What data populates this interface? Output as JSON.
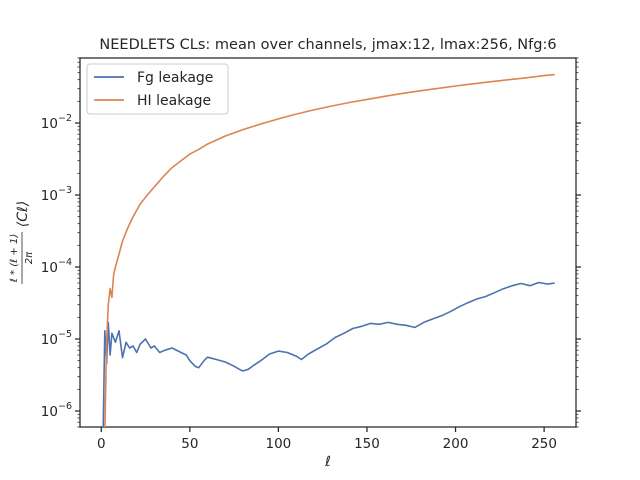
{
  "chart_data": {
    "type": "line",
    "title": "NEEDLETS CLs: mean over channels, jmax:12, lmax:256, Nfg:6",
    "xlabel": "ℓ",
    "ylabel": "ℓ*(ℓ+1)/2π ⟨Cℓ⟩",
    "ylabel_parts": {
      "numerator": "ℓ * (ℓ + 1)",
      "denominator": "2π",
      "term": "⟨Cℓ⟩"
    },
    "yscale": "log",
    "xlim": [
      -12,
      268
    ],
    "ylim": [
      6e-07,
      0.08
    ],
    "xticks": [
      0,
      50,
      100,
      150,
      200,
      250
    ],
    "xtick_labels": [
      "0",
      "50",
      "100",
      "150",
      "200",
      "250"
    ],
    "yticks": [
      1e-06,
      1e-05,
      0.0001,
      0.001,
      0.01
    ],
    "ytick_labels": [
      {
        "base": "10",
        "exp": "−6"
      },
      {
        "base": "10",
        "exp": "−5"
      },
      {
        "base": "10",
        "exp": "−4"
      },
      {
        "base": "10",
        "exp": "−3"
      },
      {
        "base": "10",
        "exp": "−2"
      }
    ],
    "grid": false,
    "legend_position": "top-left",
    "series": [
      {
        "name": "Fg leakage",
        "color": "#4c72b0",
        "points": [
          [
            1,
            4e-07
          ],
          [
            2,
            1.3e-05
          ],
          [
            3,
            4.5e-06
          ],
          [
            4,
            1.7e-05
          ],
          [
            5,
            6e-06
          ],
          [
            6,
            1.2e-05
          ],
          [
            8,
            9e-06
          ],
          [
            10,
            1.3e-05
          ],
          [
            12,
            5.5e-06
          ],
          [
            14,
            9e-06
          ],
          [
            16,
            7.5e-06
          ],
          [
            18,
            8e-06
          ],
          [
            20,
            6.5e-06
          ],
          [
            22,
            8.5e-06
          ],
          [
            25,
            1e-05
          ],
          [
            28,
            7.5e-06
          ],
          [
            30,
            8e-06
          ],
          [
            33,
            6.5e-06
          ],
          [
            36,
            7e-06
          ],
          [
            40,
            7.5e-06
          ],
          [
            45,
            6.5e-06
          ],
          [
            48,
            6e-06
          ],
          [
            50,
            5e-06
          ],
          [
            53,
            4.2e-06
          ],
          [
            55,
            4e-06
          ],
          [
            58,
            5e-06
          ],
          [
            60,
            5.6e-06
          ],
          [
            65,
            5.2e-06
          ],
          [
            70,
            4.8e-06
          ],
          [
            75,
            4.2e-06
          ],
          [
            78,
            3.8e-06
          ],
          [
            80,
            3.6e-06
          ],
          [
            83,
            3.8e-06
          ],
          [
            86,
            4.3e-06
          ],
          [
            90,
            5e-06
          ],
          [
            95,
            6.2e-06
          ],
          [
            100,
            6.8e-06
          ],
          [
            105,
            6.5e-06
          ],
          [
            110,
            5.8e-06
          ],
          [
            113,
            5.2e-06
          ],
          [
            117,
            6.2e-06
          ],
          [
            122,
            7.3e-06
          ],
          [
            127,
            8.5e-06
          ],
          [
            132,
            1.05e-05
          ],
          [
            137,
            1.2e-05
          ],
          [
            142,
            1.4e-05
          ],
          [
            147,
            1.5e-05
          ],
          [
            152,
            1.65e-05
          ],
          [
            157,
            1.6e-05
          ],
          [
            162,
            1.7e-05
          ],
          [
            167,
            1.6e-05
          ],
          [
            172,
            1.55e-05
          ],
          [
            177,
            1.45e-05
          ],
          [
            182,
            1.7e-05
          ],
          [
            187,
            1.9e-05
          ],
          [
            192,
            2.1e-05
          ],
          [
            197,
            2.4e-05
          ],
          [
            202,
            2.8e-05
          ],
          [
            207,
            3.2e-05
          ],
          [
            212,
            3.6e-05
          ],
          [
            217,
            3.9e-05
          ],
          [
            222,
            4.4e-05
          ],
          [
            227,
            5e-05
          ],
          [
            232,
            5.5e-05
          ],
          [
            237,
            5.9e-05
          ],
          [
            242,
            5.5e-05
          ],
          [
            247,
            6.1e-05
          ],
          [
            252,
            5.8e-05
          ],
          [
            256,
            6e-05
          ]
        ]
      },
      {
        "name": "HI leakage",
        "color": "#dd8452",
        "points": [
          [
            1,
            4e-07
          ],
          [
            2,
            5e-07
          ],
          [
            3,
            9e-06
          ],
          [
            4,
            3e-05
          ],
          [
            5,
            5e-05
          ],
          [
            6,
            3.8e-05
          ],
          [
            7,
            8e-05
          ],
          [
            8,
            0.0001
          ],
          [
            10,
            0.00015
          ],
          [
            12,
            0.00023
          ],
          [
            15,
            0.00035
          ],
          [
            18,
            0.0005
          ],
          [
            22,
            0.00075
          ],
          [
            26,
            0.001
          ],
          [
            30,
            0.0013
          ],
          [
            35,
            0.0018
          ],
          [
            40,
            0.0024
          ],
          [
            45,
            0.003
          ],
          [
            50,
            0.0037
          ],
          [
            55,
            0.0043
          ],
          [
            60,
            0.0051
          ],
          [
            65,
            0.0058
          ],
          [
            70,
            0.0066
          ],
          [
            75,
            0.0073
          ],
          [
            80,
            0.0081
          ],
          [
            90,
            0.0097
          ],
          [
            100,
            0.0114
          ],
          [
            110,
            0.0133
          ],
          [
            120,
            0.0152
          ],
          [
            130,
            0.0172
          ],
          [
            140,
            0.0193
          ],
          [
            150,
            0.0213
          ],
          [
            160,
            0.0235
          ],
          [
            170,
            0.0258
          ],
          [
            180,
            0.028
          ],
          [
            190,
            0.0303
          ],
          [
            200,
            0.0327
          ],
          [
            210,
            0.035
          ],
          [
            220,
            0.0375
          ],
          [
            230,
            0.04
          ],
          [
            240,
            0.0425
          ],
          [
            250,
            0.0455
          ],
          [
            256,
            0.047
          ]
        ]
      }
    ]
  }
}
